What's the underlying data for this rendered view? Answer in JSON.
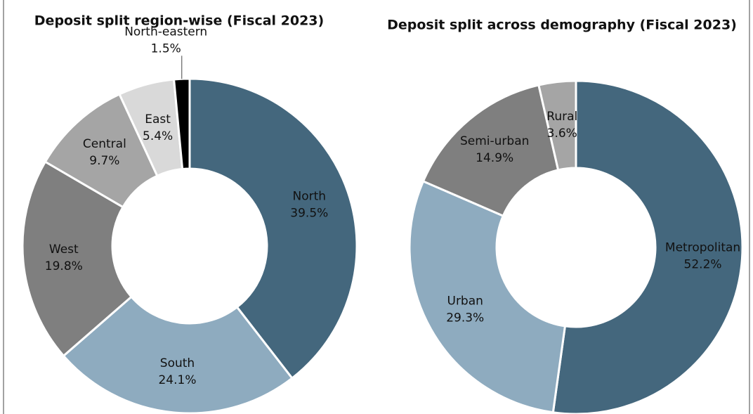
{
  "chart_data": [
    {
      "type": "donut",
      "title": "Deposit split region-wise (Fiscal 2023)",
      "categories": [
        "North",
        "South",
        "West",
        "Central",
        "East",
        "North-eastern"
      ],
      "values": [
        39.5,
        24.1,
        19.8,
        9.7,
        5.4,
        1.5
      ],
      "value_labels": [
        "39.5%",
        "24.1%",
        "19.8%",
        "9.7%",
        "5.4%",
        "1.5%"
      ],
      "colors": [
        "#44677d",
        "#8eabbf",
        "#7f7f7f",
        "#a5a5a5",
        "#d9d9d9",
        "#000000"
      ]
    },
    {
      "type": "donut",
      "title": "Deposit split across demography (Fiscal 2023)",
      "categories": [
        "Metropolitan",
        "Urban",
        "Semi-urban",
        "Rural"
      ],
      "values": [
        52.2,
        29.3,
        14.9,
        3.6
      ],
      "value_labels": [
        "52.2%",
        "29.3%",
        "14.9%",
        "3.6%"
      ],
      "colors": [
        "#44677d",
        "#8eabbf",
        "#7f7f7f",
        "#a5a5a5"
      ]
    }
  ]
}
